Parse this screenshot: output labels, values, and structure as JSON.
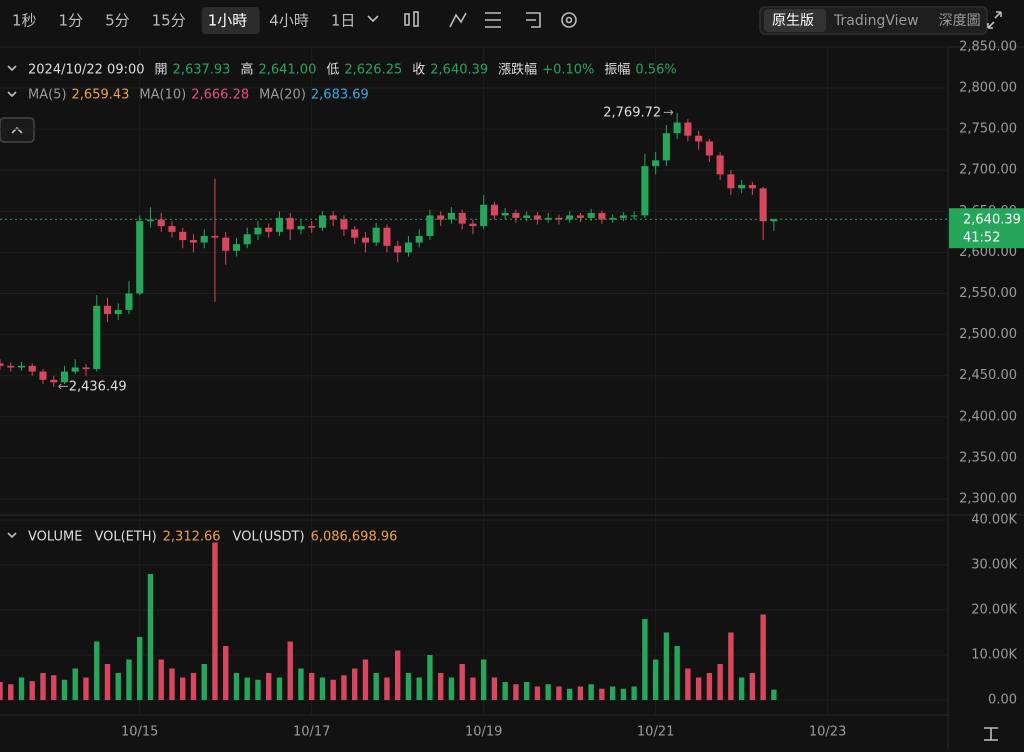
{
  "toolbar": {
    "intervals": [
      "1秒",
      "1分",
      "5分",
      "15分",
      "1小時",
      "4小時",
      "1日"
    ],
    "active": 4,
    "views": [
      "原生版",
      "TradingView",
      "深度圖"
    ],
    "active_view": 0
  },
  "chart_data": [
    {
      "type": "candlestick",
      "header": {
        "time": "2024/10/22 09:00",
        "items": [
          {
            "name": "開",
            "value": "2,637.93"
          },
          {
            "name": "高",
            "value": "2,641.00"
          },
          {
            "name": "低",
            "value": "2,626.25"
          },
          {
            "name": "收",
            "value": "2,640.39"
          },
          {
            "name": "漲跌幅",
            "value": "+0.10%"
          },
          {
            "name": "振幅",
            "value": "0.56%"
          }
        ]
      },
      "moving_averages": [
        {
          "name": "MA(5)",
          "value": "2,659.43",
          "color": "#f0a04a"
        },
        {
          "name": "MA(10)",
          "value": "2,666.28",
          "color": "#e0507a"
        },
        {
          "name": "MA(20)",
          "value": "2,683.69",
          "color": "#3aa8e0"
        }
      ],
      "up_color": "#26a65b",
      "down_color": "#d9475e",
      "x": [
        -15,
        -12,
        -9,
        -6,
        -3,
        0,
        3,
        6,
        9,
        12,
        15,
        18,
        21,
        24,
        27,
        30,
        33,
        36,
        39,
        42,
        45,
        48,
        51,
        54,
        57,
        60,
        63,
        66,
        69,
        72,
        75,
        78,
        81,
        84,
        87,
        90,
        93,
        96,
        99,
        102,
        105,
        108,
        111,
        114,
        117,
        120,
        123,
        126,
        129,
        132,
        135,
        138,
        141,
        144,
        147,
        150,
        153,
        156,
        159,
        162,
        165,
        168,
        171,
        174,
        177,
        180,
        183,
        186,
        189,
        192,
        195,
        198,
        201
      ],
      "open": [
        2465,
        2462,
        2460,
        2462,
        2455,
        2445,
        2442,
        2455,
        2460,
        2458,
        2535,
        2525,
        2530,
        2550,
        2638,
        2640,
        2632,
        2625,
        2615,
        2612,
        2620,
        2618,
        2602,
        2610,
        2622,
        2630,
        2625,
        2642,
        2628,
        2632,
        2630,
        2645,
        2640,
        2628,
        2618,
        2612,
        2630,
        2608,
        2600,
        2612,
        2620,
        2645,
        2640,
        2648,
        2635,
        2632,
        2658,
        2645,
        2648,
        2642,
        2645,
        2640,
        2642,
        2640,
        2645,
        2642,
        2648,
        2640,
        2642,
        2645,
        2645,
        2705,
        2712,
        2745,
        2758,
        2742,
        2735,
        2718,
        2695,
        2678,
        2682,
        2678,
        2637.93
      ],
      "high": [
        2470,
        2466,
        2467,
        2465,
        2458,
        2450,
        2462,
        2470,
        2464,
        2548,
        2545,
        2538,
        2565,
        2645,
        2655,
        2648,
        2638,
        2630,
        2622,
        2628,
        2690,
        2625,
        2618,
        2630,
        2638,
        2635,
        2650,
        2648,
        2640,
        2638,
        2650,
        2650,
        2645,
        2632,
        2625,
        2636,
        2634,
        2614,
        2620,
        2628,
        2652,
        2650,
        2655,
        2652,
        2640,
        2670,
        2662,
        2654,
        2652,
        2650,
        2649,
        2648,
        2646,
        2650,
        2648,
        2653,
        2651,
        2646,
        2649,
        2650,
        2720,
        2722,
        2755,
        2769.72,
        2762,
        2748,
        2738,
        2722,
        2700,
        2688,
        2686,
        2680,
        2641
      ],
      "low": [
        2457,
        2455,
        2456,
        2450,
        2440,
        2436.49,
        2440,
        2452,
        2450,
        2455,
        2515,
        2518,
        2525,
        2548,
        2630,
        2625,
        2618,
        2605,
        2600,
        2605,
        2540,
        2585,
        2595,
        2605,
        2615,
        2618,
        2620,
        2615,
        2622,
        2624,
        2626,
        2632,
        2620,
        2610,
        2600,
        2608,
        2600,
        2588,
        2595,
        2606,
        2615,
        2632,
        2635,
        2628,
        2622,
        2628,
        2640,
        2640,
        2636,
        2638,
        2634,
        2636,
        2634,
        2636,
        2637,
        2638,
        2635,
        2636,
        2638,
        2640,
        2642,
        2695,
        2705,
        2738,
        2735,
        2725,
        2710,
        2688,
        2670,
        2672,
        2670,
        2615,
        2626.25
      ],
      "close": [
        2462,
        2460,
        2462,
        2455,
        2445,
        2442,
        2455,
        2460,
        2458,
        2535,
        2525,
        2530,
        2550,
        2638,
        2640,
        2632,
        2625,
        2615,
        2612,
        2620,
        2618,
        2602,
        2610,
        2622,
        2630,
        2625,
        2642,
        2628,
        2632,
        2630,
        2645,
        2640,
        2628,
        2618,
        2612,
        2630,
        2608,
        2600,
        2612,
        2620,
        2645,
        2640,
        2648,
        2635,
        2632,
        2658,
        2645,
        2648,
        2642,
        2645,
        2640,
        2642,
        2640,
        2645,
        2642,
        2648,
        2640,
        2642,
        2645,
        2645,
        2705,
        2712,
        2745,
        2758,
        2742,
        2735,
        2718,
        2695,
        2678,
        2682,
        2678,
        2637.93,
        2640.39
      ],
      "xlim": [
        -15,
        249.6
      ],
      "ylim": [
        2280.5,
        2848.7
      ],
      "yticks": [
        {
          "value": 2300,
          "label": "2,300.00"
        },
        {
          "value": 2350,
          "label": "2,350.00"
        },
        {
          "value": 2400,
          "label": "2,400.00"
        },
        {
          "value": 2450,
          "label": "2,450.00"
        },
        {
          "value": 2500,
          "label": "2,500.00"
        },
        {
          "value": 2550,
          "label": "2,550.00"
        },
        {
          "value": 2600,
          "label": "2,600.00"
        },
        {
          "value": 2650,
          "label": "2,650.00"
        },
        {
          "value": 2700,
          "label": "2,700.00"
        },
        {
          "value": 2750,
          "label": "2,750.00"
        },
        {
          "value": 2800,
          "label": "2,800.00"
        },
        {
          "value": 2850,
          "label": "2,850.00"
        }
      ],
      "annotations": [
        {
          "x": 174,
          "y": 2769.72,
          "label": "2,769.72",
          "side": "left"
        },
        {
          "x": 0,
          "y": 2436.49,
          "label": "2,436.49",
          "side": "right"
        }
      ],
      "last_price": {
        "value": 2640.39,
        "label": "2,640.39",
        "countdown": "41:52"
      },
      "grid": true
    },
    {
      "type": "bar",
      "title": "VOLUME",
      "header": [
        {
          "name": "VOL(ETH)",
          "value": "2,312.66"
        },
        {
          "name": "VOL(USDT)",
          "value": "6,086,698.96"
        }
      ],
      "values": [
        4000,
        3500,
        5000,
        4200,
        6000,
        5500,
        4500,
        7000,
        5000,
        13000,
        8000,
        6000,
        9000,
        14000,
        28000,
        9000,
        7000,
        5000,
        6000,
        8000,
        35000,
        12000,
        6000,
        5000,
        4500,
        6000,
        5000,
        13000,
        7000,
        6000,
        5000,
        4500,
        5500,
        7000,
        9000,
        6000,
        5000,
        11000,
        6000,
        5000,
        10000,
        6000,
        5000,
        8000,
        5000,
        9000,
        5000,
        4000,
        3500,
        4000,
        3000,
        3500,
        3000,
        2500,
        3000,
        3500,
        2500,
        3000,
        2500,
        3000,
        18000,
        9000,
        15000,
        12000,
        7000,
        5000,
        6000,
        8000,
        15000,
        5000,
        6000,
        19000,
        2312.66
      ],
      "ylim": [
        -3333,
        40889
      ],
      "yticks": [
        {
          "value": 0,
          "label": "0.00"
        },
        {
          "value": 10000,
          "label": "10.00K"
        },
        {
          "value": 20000,
          "label": "20.00K"
        },
        {
          "value": 30000,
          "label": "30.00K"
        },
        {
          "value": 40000,
          "label": "40.00K"
        }
      ],
      "xticks": [
        {
          "value": 24,
          "label": "10/15"
        },
        {
          "value": 72,
          "label": "10/17"
        },
        {
          "value": 120,
          "label": "10/19"
        },
        {
          "value": 168,
          "label": "10/21"
        },
        {
          "value": 216,
          "label": "10/23"
        }
      ],
      "grid": true
    }
  ]
}
